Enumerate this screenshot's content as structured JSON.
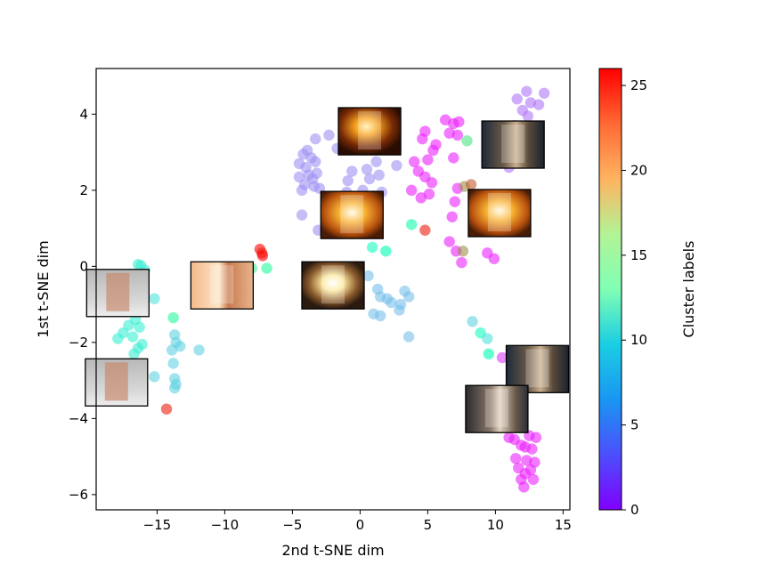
{
  "chart_data": {
    "type": "scatter",
    "title": "",
    "xlabel": "2nd t-SNE dim",
    "ylabel": "1st t-SNE dim",
    "xlim": [
      -19.5,
      15.5
    ],
    "ylim": [
      -6.4,
      5.2
    ],
    "x_ticks": [
      -15,
      -10,
      -5,
      0,
      5,
      10,
      15
    ],
    "x_tick_labels": [
      "−15",
      "−10",
      "−5",
      "0",
      "5",
      "10",
      "15"
    ],
    "y_ticks": [
      -6,
      -4,
      -2,
      0,
      2,
      4
    ],
    "y_tick_labels": [
      "−6",
      "−4",
      "−2",
      "0",
      "2",
      "4"
    ],
    "grid": false,
    "colormap": "rainbow",
    "colorbar": {
      "label": "Cluster labels",
      "range": [
        0,
        26
      ],
      "ticks": [
        0,
        5,
        10,
        15,
        20,
        25
      ],
      "tick_labels": [
        "0",
        "5",
        "10",
        "15",
        "20",
        "25"
      ]
    },
    "points": [
      {
        "x": 12.3,
        "y": 4.6,
        "c": 4
      },
      {
        "x": 13.6,
        "y": 4.55,
        "c": 4
      },
      {
        "x": 11.6,
        "y": 4.4,
        "c": 4
      },
      {
        "x": 12.6,
        "y": 4.3,
        "c": 4
      },
      {
        "x": 13.2,
        "y": 4.25,
        "c": 4
      },
      {
        "x": 12.0,
        "y": 4.1,
        "c": 4
      },
      {
        "x": 12.4,
        "y": 3.95,
        "c": 4
      },
      {
        "x": 11.4,
        "y": 3.7,
        "c": 4
      },
      {
        "x": 11.2,
        "y": 3.2,
        "c": 4
      },
      {
        "x": 11.0,
        "y": 2.6,
        "c": 4
      },
      {
        "x": 6.3,
        "y": 3.85,
        "c": 1
      },
      {
        "x": 6.9,
        "y": 3.75,
        "c": 1
      },
      {
        "x": 7.3,
        "y": 3.8,
        "c": 1
      },
      {
        "x": 6.6,
        "y": 3.5,
        "c": 1
      },
      {
        "x": 7.2,
        "y": 3.45,
        "c": 1
      },
      {
        "x": 4.8,
        "y": 3.55,
        "c": 1
      },
      {
        "x": 4.6,
        "y": 3.35,
        "c": 1
      },
      {
        "x": 5.6,
        "y": 3.2,
        "c": 1
      },
      {
        "x": 5.4,
        "y": 3.05,
        "c": 1
      },
      {
        "x": 4.0,
        "y": 2.75,
        "c": 1
      },
      {
        "x": 5.0,
        "y": 2.8,
        "c": 1
      },
      {
        "x": 4.3,
        "y": 2.5,
        "c": 1
      },
      {
        "x": 4.8,
        "y": 2.35,
        "c": 1
      },
      {
        "x": 5.3,
        "y": 2.2,
        "c": 1
      },
      {
        "x": 3.8,
        "y": 2.0,
        "c": 1
      },
      {
        "x": 4.5,
        "y": 1.8,
        "c": 1
      },
      {
        "x": 5.1,
        "y": 1.9,
        "c": 1
      },
      {
        "x": 7.0,
        "y": 1.7,
        "c": 1
      },
      {
        "x": 7.2,
        "y": 2.05,
        "c": 1
      },
      {
        "x": 6.8,
        "y": 1.3,
        "c": 1
      },
      {
        "x": 6.6,
        "y": 0.65,
        "c": 1
      },
      {
        "x": 7.1,
        "y": 0.4,
        "c": 1
      },
      {
        "x": 7.5,
        "y": 0.1,
        "c": 1
      },
      {
        "x": 9.4,
        "y": 0.35,
        "c": 1
      },
      {
        "x": 9.9,
        "y": 0.2,
        "c": 1
      },
      {
        "x": 6.9,
        "y": 2.85,
        "c": 1
      },
      {
        "x": 7.9,
        "y": 3.3,
        "c": 17
      },
      {
        "x": 7.7,
        "y": 2.1,
        "c": 21
      },
      {
        "x": 8.2,
        "y": 2.15,
        "c": 23
      },
      {
        "x": 7.6,
        "y": 0.4,
        "c": 21
      },
      {
        "x": 4.8,
        "y": 0.95,
        "c": 25
      },
      {
        "x": 3.8,
        "y": 1.1,
        "c": 14
      },
      {
        "x": -3.9,
        "y": 3.05,
        "c": 5
      },
      {
        "x": -4.2,
        "y": 2.95,
        "c": 5
      },
      {
        "x": -3.6,
        "y": 2.85,
        "c": 5
      },
      {
        "x": -4.5,
        "y": 2.7,
        "c": 5
      },
      {
        "x": -3.3,
        "y": 2.75,
        "c": 5
      },
      {
        "x": -4.0,
        "y": 2.6,
        "c": 5
      },
      {
        "x": -3.8,
        "y": 2.4,
        "c": 5
      },
      {
        "x": -4.5,
        "y": 2.35,
        "c": 5
      },
      {
        "x": -3.2,
        "y": 2.45,
        "c": 5
      },
      {
        "x": -3.5,
        "y": 2.3,
        "c": 5
      },
      {
        "x": -4.1,
        "y": 2.15,
        "c": 5
      },
      {
        "x": -3.4,
        "y": 2.1,
        "c": 5
      },
      {
        "x": -4.3,
        "y": 2.0,
        "c": 5
      },
      {
        "x": -3.0,
        "y": 2.05,
        "c": 5
      },
      {
        "x": -3.3,
        "y": 3.35,
        "c": 5
      },
      {
        "x": -2.3,
        "y": 3.45,
        "c": 5
      },
      {
        "x": -1.7,
        "y": 3.1,
        "c": 5
      },
      {
        "x": -0.6,
        "y": 2.5,
        "c": 5
      },
      {
        "x": -0.9,
        "y": 2.25,
        "c": 5
      },
      {
        "x": -1.0,
        "y": 1.95,
        "c": 5
      },
      {
        "x": 0.5,
        "y": 2.55,
        "c": 5
      },
      {
        "x": 1.2,
        "y": 2.75,
        "c": 5
      },
      {
        "x": 0.7,
        "y": 2.3,
        "c": 5
      },
      {
        "x": 1.4,
        "y": 2.4,
        "c": 5
      },
      {
        "x": 2.7,
        "y": 2.65,
        "c": 5
      },
      {
        "x": 0.2,
        "y": 2.0,
        "c": 5
      },
      {
        "x": 1.0,
        "y": 1.85,
        "c": 5
      },
      {
        "x": 1.6,
        "y": 1.95,
        "c": 5
      },
      {
        "x": -0.4,
        "y": 1.6,
        "c": 5
      },
      {
        "x": 0.4,
        "y": 1.5,
        "c": 5
      },
      {
        "x": -4.3,
        "y": 1.35,
        "c": 5
      },
      {
        "x": -3.1,
        "y": 0.95,
        "c": 5
      },
      {
        "x": 0.6,
        "y": -0.25,
        "c": 7
      },
      {
        "x": 1.3,
        "y": -0.6,
        "c": 7
      },
      {
        "x": 1.5,
        "y": -0.8,
        "c": 7
      },
      {
        "x": 2.0,
        "y": -0.85,
        "c": 7
      },
      {
        "x": 3.3,
        "y": -0.65,
        "c": 7
      },
      {
        "x": 3.6,
        "y": -0.8,
        "c": 7
      },
      {
        "x": 2.3,
        "y": -0.95,
        "c": 7
      },
      {
        "x": 3.0,
        "y": -1.0,
        "c": 7
      },
      {
        "x": 2.9,
        "y": -1.15,
        "c": 7
      },
      {
        "x": 1.0,
        "y": -1.25,
        "c": 7
      },
      {
        "x": 1.5,
        "y": -1.3,
        "c": 7
      },
      {
        "x": 3.6,
        "y": -1.85,
        "c": 7
      },
      {
        "x": 0.9,
        "y": 0.5,
        "c": 12
      },
      {
        "x": 1.9,
        "y": 0.4,
        "c": 13
      },
      {
        "x": -7.4,
        "y": 0.45,
        "c": 26
      },
      {
        "x": -7.25,
        "y": 0.35,
        "c": 25
      },
      {
        "x": -7.2,
        "y": 0.28,
        "c": 26
      },
      {
        "x": -8.0,
        "y": -0.05,
        "c": 16
      },
      {
        "x": -6.9,
        "y": -0.05,
        "c": 15
      },
      {
        "x": -16.4,
        "y": 0.05,
        "c": 10
      },
      {
        "x": -16.2,
        "y": 0.02,
        "c": 10
      },
      {
        "x": -15.9,
        "y": -0.1,
        "c": 10
      },
      {
        "x": -17.0,
        "y": -0.2,
        "c": 10
      },
      {
        "x": -15.2,
        "y": -0.85,
        "c": 9
      },
      {
        "x": -16.6,
        "y": -1.4,
        "c": 10
      },
      {
        "x": -17.1,
        "y": -1.55,
        "c": 10
      },
      {
        "x": -16.3,
        "y": -1.6,
        "c": 10
      },
      {
        "x": -17.5,
        "y": -1.75,
        "c": 10
      },
      {
        "x": -16.8,
        "y": -1.85,
        "c": 10
      },
      {
        "x": -17.9,
        "y": -1.9,
        "c": 10
      },
      {
        "x": -16.1,
        "y": -2.05,
        "c": 10
      },
      {
        "x": -16.4,
        "y": -2.15,
        "c": 10
      },
      {
        "x": -16.7,
        "y": -2.3,
        "c": 10
      },
      {
        "x": -13.8,
        "y": -1.35,
        "c": 15
      },
      {
        "x": -13.7,
        "y": -1.8,
        "c": 8
      },
      {
        "x": -13.6,
        "y": -2.0,
        "c": 8
      },
      {
        "x": -13.3,
        "y": -2.1,
        "c": 8
      },
      {
        "x": -13.9,
        "y": -2.2,
        "c": 8
      },
      {
        "x": -11.9,
        "y": -2.2,
        "c": 8
      },
      {
        "x": -13.8,
        "y": -2.55,
        "c": 8
      },
      {
        "x": -15.2,
        "y": -2.9,
        "c": 8
      },
      {
        "x": -13.7,
        "y": -2.95,
        "c": 8
      },
      {
        "x": -13.6,
        "y": -3.1,
        "c": 8
      },
      {
        "x": -13.7,
        "y": -3.2,
        "c": 8
      },
      {
        "x": -14.3,
        "y": -3.75,
        "c": 25
      },
      {
        "x": 8.3,
        "y": -1.45,
        "c": 8
      },
      {
        "x": 8.9,
        "y": -1.75,
        "c": 12
      },
      {
        "x": 9.4,
        "y": -1.9,
        "c": 9
      },
      {
        "x": 9.5,
        "y": -2.3,
        "c": 13
      },
      {
        "x": 10.5,
        "y": -2.4,
        "c": 2
      },
      {
        "x": 11.3,
        "y": -2.45,
        "c": 2
      },
      {
        "x": 11.0,
        "y": -4.5,
        "c": 1
      },
      {
        "x": 11.4,
        "y": -4.55,
        "c": 1
      },
      {
        "x": 12.5,
        "y": -4.45,
        "c": 1
      },
      {
        "x": 13.0,
        "y": -4.5,
        "c": 1
      },
      {
        "x": 11.9,
        "y": -4.7,
        "c": 1
      },
      {
        "x": 12.2,
        "y": -4.75,
        "c": 1
      },
      {
        "x": 12.7,
        "y": -4.8,
        "c": 1
      },
      {
        "x": 11.5,
        "y": -5.05,
        "c": 1
      },
      {
        "x": 12.3,
        "y": -5.1,
        "c": 1
      },
      {
        "x": 12.9,
        "y": -5.15,
        "c": 1
      },
      {
        "x": 11.7,
        "y": -5.3,
        "c": 1
      },
      {
        "x": 12.6,
        "y": -5.35,
        "c": 1
      },
      {
        "x": 12.2,
        "y": -5.45,
        "c": 1
      },
      {
        "x": 11.9,
        "y": -5.6,
        "c": 1
      },
      {
        "x": 12.1,
        "y": -5.8,
        "c": 1
      },
      {
        "x": 12.8,
        "y": -5.6,
        "c": 1
      }
    ],
    "thumbnails": [
      {
        "x": 0.7,
        "y": 3.55,
        "scene": "flame-dark",
        "description": "fire-thumbnail"
      },
      {
        "x": 11.3,
        "y": 3.2,
        "scene": "charred",
        "description": "charred-thumbnail"
      },
      {
        "x": -0.6,
        "y": 1.35,
        "scene": "flame-bright",
        "description": "fire-thumbnail"
      },
      {
        "x": 10.3,
        "y": 1.4,
        "scene": "flame-bright",
        "description": "fire-thumbnail"
      },
      {
        "x": -10.2,
        "y": -0.5,
        "scene": "early-ignition",
        "description": "early-fire-thumbnail"
      },
      {
        "x": -2.0,
        "y": -0.5,
        "scene": "flame-white",
        "description": "fire-thumbnail"
      },
      {
        "x": -17.9,
        "y": -0.7,
        "scene": "unburnt",
        "description": "unburnt-thumbnail"
      },
      {
        "x": -18.0,
        "y": -3.05,
        "scene": "unburnt",
        "description": "unburnt-thumbnail"
      },
      {
        "x": 13.1,
        "y": -2.7,
        "scene": "charred",
        "description": "charred-thumbnail"
      },
      {
        "x": 10.1,
        "y": -3.75,
        "scene": "charred-smoke",
        "description": "charred-thumbnail"
      }
    ]
  }
}
